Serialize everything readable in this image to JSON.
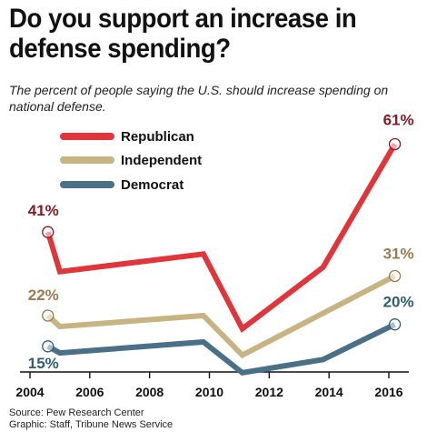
{
  "chart_data": {
    "type": "line",
    "title": "Do you support an increase in defense spending?",
    "subtitle": "The percent of people saying the U.S. should increase spending on national defense.",
    "x_ticks": [
      "2004",
      "2006",
      "2008",
      "2010",
      "2012",
      "2014",
      "2016"
    ],
    "xlim": [
      2004,
      2016.5
    ],
    "ylim": [
      10,
      70
    ],
    "grid": false,
    "legend": "top-left",
    "series": [
      {
        "name": "Republican",
        "color": "#e0353a",
        "label_color": "#8a1a24",
        "x": [
          2004.6,
          2005,
          2009.8,
          2011.1,
          2013.8,
          2016.2
        ],
        "y": [
          41,
          32,
          36,
          19,
          33,
          61
        ],
        "start_label": "41%",
        "end_label": "61%"
      },
      {
        "name": "Independent",
        "color": "#c8b483",
        "label_color": "#9c7a52",
        "x": [
          2004.6,
          2005,
          2009.8,
          2011.1,
          2016.2
        ],
        "y": [
          22,
          19.5,
          22,
          13,
          31
        ],
        "start_label": "22%",
        "end_label": "31%"
      },
      {
        "name": "Democrat",
        "color": "#4a7088",
        "label_color": "#2f5d78",
        "x": [
          2004.6,
          2005,
          2009.8,
          2011.1,
          2013.8,
          2016.2
        ],
        "y": [
          15,
          13.5,
          16,
          9,
          12,
          20
        ],
        "start_label": "15%",
        "end_label": "20%"
      }
    ],
    "source": "Source: Pew Research Center",
    "graphic_credit": "Graphic: Staff, Tribune News Service"
  }
}
